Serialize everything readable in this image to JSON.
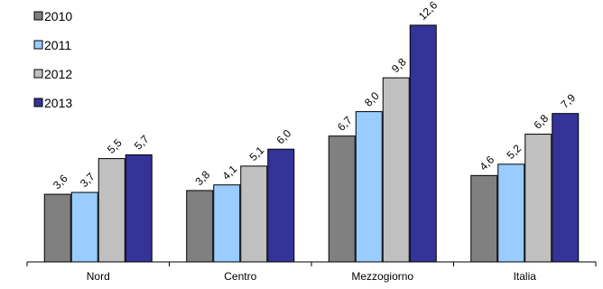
{
  "chart_data": {
    "type": "bar",
    "title": "",
    "xlabel": "",
    "ylabel": "",
    "categories": [
      "Nord",
      "Centro",
      "Mezzogiorno",
      "Italia"
    ],
    "series": [
      {
        "name": "2010",
        "color": "#808080",
        "values": [
          3.6,
          3.8,
          6.7,
          4.6
        ],
        "labels": [
          "3,6",
          "3,8",
          "6,7",
          "4,6"
        ]
      },
      {
        "name": "2011",
        "color": "#99ccff",
        "values": [
          3.7,
          4.1,
          8.0,
          5.2
        ],
        "labels": [
          "3,7",
          "4,1",
          "8,0",
          "5,2"
        ]
      },
      {
        "name": "2012",
        "color": "#c0c0c0",
        "values": [
          5.5,
          5.1,
          9.8,
          6.8
        ],
        "labels": [
          "5,5",
          "5,1",
          "9,8",
          "6,8"
        ]
      },
      {
        "name": "2013",
        "color": "#333399",
        "values": [
          5.7,
          6.0,
          12.6,
          7.9
        ],
        "labels": [
          "5,7",
          "6,0",
          "12,6",
          "7,9"
        ]
      }
    ],
    "ylim": [
      0,
      14
    ],
    "grid": false,
    "legend_position": "top-left",
    "data_labels": true
  }
}
